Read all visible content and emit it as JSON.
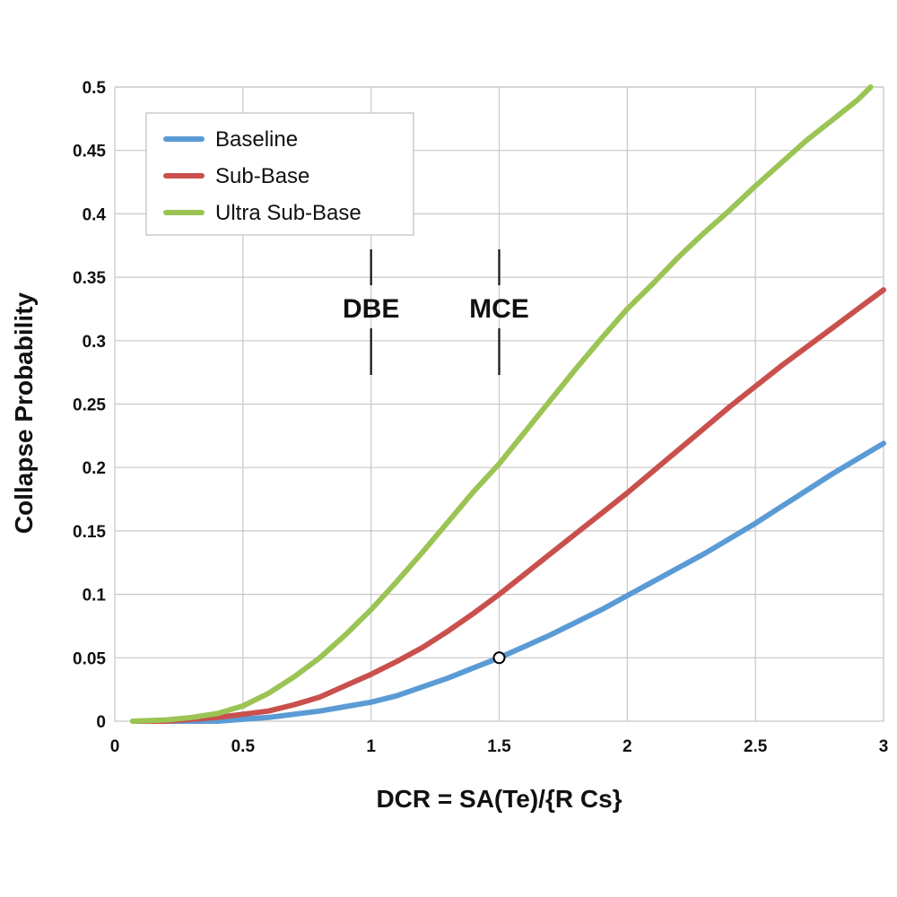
{
  "chart_data": {
    "type": "line",
    "title": "",
    "xlabel": "DCR = SA(Te)/{R Cs}",
    "ylabel": "Collapse Probability",
    "xlim": [
      0,
      3
    ],
    "ylim": [
      0,
      0.5
    ],
    "x_ticks": [
      0,
      0.5,
      1,
      1.5,
      2,
      2.5,
      3
    ],
    "x_tick_labels": [
      "0",
      "0.5",
      "1",
      "1.5",
      "2",
      "2.5",
      "3"
    ],
    "y_ticks": [
      0,
      0.05,
      0.1,
      0.15,
      0.2,
      0.25,
      0.3,
      0.35,
      0.4,
      0.45,
      0.5
    ],
    "y_tick_labels": [
      "0",
      "0.05",
      "0.1",
      "0.15",
      "0.2",
      "0.25",
      "0.3",
      "0.35",
      "0.4",
      "0.45",
      "0.5"
    ],
    "grid": true,
    "legend_position": "top-left",
    "series": [
      {
        "name": "Baseline",
        "color": "#5b9bd5",
        "x": [
          0.07,
          0.2,
          0.4,
          0.6,
          0.8,
          1.0,
          1.1,
          1.2,
          1.3,
          1.4,
          1.5,
          1.6,
          1.7,
          1.8,
          1.9,
          2.0,
          2.1,
          2.2,
          2.3,
          2.4,
          2.5,
          2.6,
          2.7,
          2.8,
          2.9,
          3.0
        ],
        "y": [
          0,
          0,
          0,
          0.003,
          0.008,
          0.015,
          0.02,
          0.027,
          0.034,
          0.042,
          0.05,
          0.059,
          0.068,
          0.078,
          0.088,
          0.099,
          0.11,
          0.121,
          0.132,
          0.144,
          0.156,
          0.169,
          0.182,
          0.195,
          0.207,
          0.219
        ]
      },
      {
        "name": "Sub-Base",
        "color": "#c9504c",
        "x": [
          0.07,
          0.2,
          0.4,
          0.6,
          0.7,
          0.8,
          0.9,
          1.0,
          1.1,
          1.2,
          1.3,
          1.4,
          1.5,
          1.6,
          1.7,
          1.8,
          1.9,
          2.0,
          2.1,
          2.2,
          2.3,
          2.4,
          2.5,
          2.6,
          2.7,
          2.8,
          2.9,
          3.0
        ],
        "y": [
          0,
          0,
          0.003,
          0.008,
          0.013,
          0.019,
          0.028,
          0.037,
          0.047,
          0.058,
          0.071,
          0.085,
          0.1,
          0.116,
          0.132,
          0.148,
          0.164,
          0.18,
          0.197,
          0.214,
          0.231,
          0.248,
          0.264,
          0.28,
          0.295,
          0.31,
          0.325,
          0.34
        ]
      },
      {
        "name": "Ultra Sub-Base",
        "color": "#9bc455",
        "x": [
          0.07,
          0.2,
          0.3,
          0.4,
          0.5,
          0.6,
          0.7,
          0.8,
          0.9,
          1.0,
          1.1,
          1.2,
          1.3,
          1.4,
          1.5,
          1.6,
          1.7,
          1.8,
          1.9,
          2.0,
          2.1,
          2.2,
          2.3,
          2.4,
          2.5,
          2.6,
          2.7,
          2.8,
          2.9,
          2.95
        ],
        "y": [
          0,
          0.001,
          0.003,
          0.006,
          0.012,
          0.022,
          0.035,
          0.05,
          0.068,
          0.088,
          0.11,
          0.133,
          0.157,
          0.181,
          0.203,
          0.228,
          0.253,
          0.278,
          0.302,
          0.325,
          0.345,
          0.366,
          0.385,
          0.403,
          0.422,
          0.44,
          0.458,
          0.474,
          0.49,
          0.5
        ]
      }
    ],
    "markers": [
      {
        "x": 1.5,
        "y": 0.05,
        "fill": "#ffffff",
        "stroke": "#000000"
      }
    ],
    "annotations": [
      {
        "label": "DBE",
        "x": 1.0
      },
      {
        "label": "MCE",
        "x": 1.5
      }
    ]
  }
}
